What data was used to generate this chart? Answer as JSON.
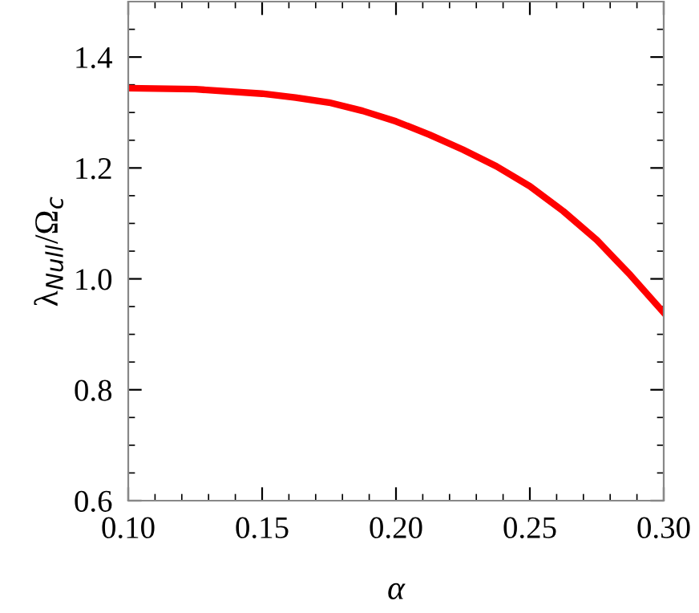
{
  "chart_data": {
    "type": "line",
    "xlabel": "α",
    "ylabel": "λ$_{Null}$/Ω$_{c}$",
    "x": [
      0.1,
      0.125,
      0.15,
      0.1625,
      0.175,
      0.1875,
      0.2,
      0.2125,
      0.225,
      0.2375,
      0.25,
      0.2625,
      0.275,
      0.2875,
      0.3
    ],
    "series": [
      {
        "color": "#ff0000",
        "values": [
          1.344,
          1.342,
          1.334,
          1.327,
          1.318,
          1.303,
          1.284,
          1.26,
          1.233,
          1.203,
          1.167,
          1.122,
          1.07,
          1.007,
          0.939
        ]
      }
    ],
    "xlim": [
      0.1,
      0.3
    ],
    "xticks": [
      {
        "value": 0.1,
        "label": "0.10"
      },
      0.15,
      {
        "value": 0.2,
        "label": "0.20"
      },
      0.25,
      {
        "value": 0.3,
        "label": "0.30"
      }
    ],
    "ylim": [
      0.6,
      1.5
    ],
    "yticks": [
      0.6,
      0.8,
      {
        "value": 1.0,
        "label": "1.0"
      },
      1.2,
      1.4
    ],
    "grid": false,
    "marker": "none",
    "line_style": "solid"
  }
}
